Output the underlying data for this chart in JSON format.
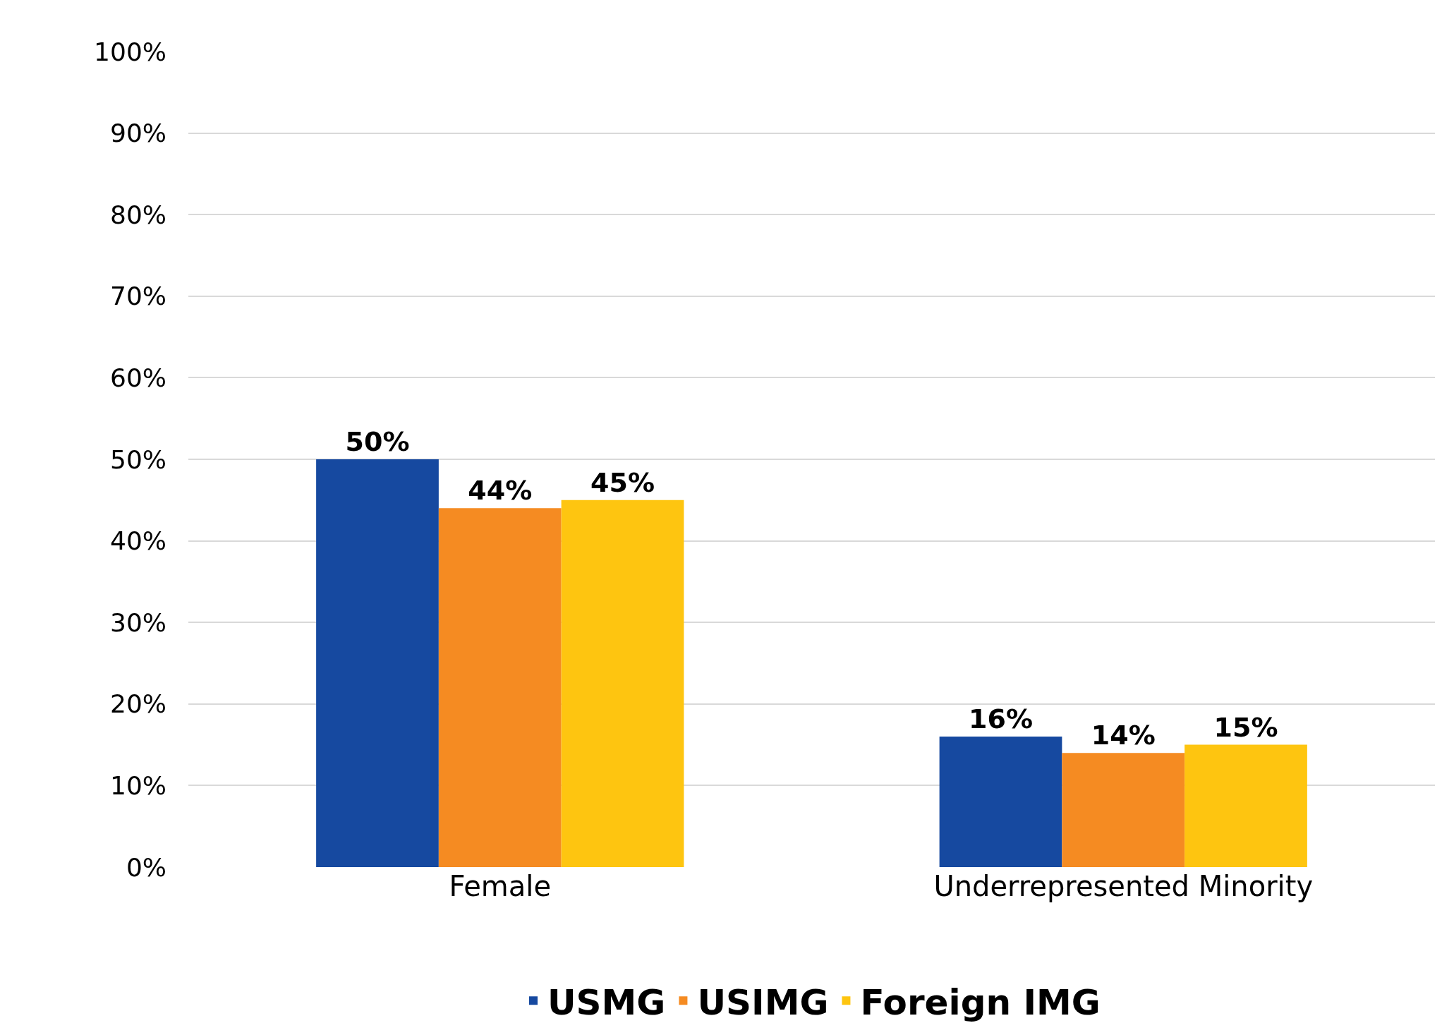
{
  "chart_data": {
    "type": "bar",
    "categories": [
      "Female",
      "Underrepresented Minority"
    ],
    "series": [
      {
        "name": "USMG",
        "color": "#1649a0",
        "values": [
          50,
          16
        ],
        "value_labels": [
          "50%",
          "16%"
        ]
      },
      {
        "name": "USIMG",
        "color": "#f58b22",
        "values": [
          44,
          14
        ],
        "value_labels": [
          "44%",
          "14%"
        ]
      },
      {
        "name": "Foreign IMG",
        "color": "#fec510",
        "values": [
          45,
          15
        ],
        "value_labels": [
          "45%",
          "15%"
        ]
      }
    ],
    "ylim": [
      0,
      100
    ],
    "yticks": [
      {
        "value": 0,
        "label": "0%"
      },
      {
        "value": 10,
        "label": "10%"
      },
      {
        "value": 20,
        "label": "20%"
      },
      {
        "value": 30,
        "label": "30%"
      },
      {
        "value": 40,
        "label": "40%"
      },
      {
        "value": 50,
        "label": "50%"
      },
      {
        "value": 60,
        "label": "60%"
      },
      {
        "value": 70,
        "label": "70%"
      },
      {
        "value": 80,
        "label": "80%"
      },
      {
        "value": 90,
        "label": "90%"
      },
      {
        "value": 100,
        "label": "100%"
      }
    ],
    "grid": "y",
    "legend": "bottom"
  }
}
